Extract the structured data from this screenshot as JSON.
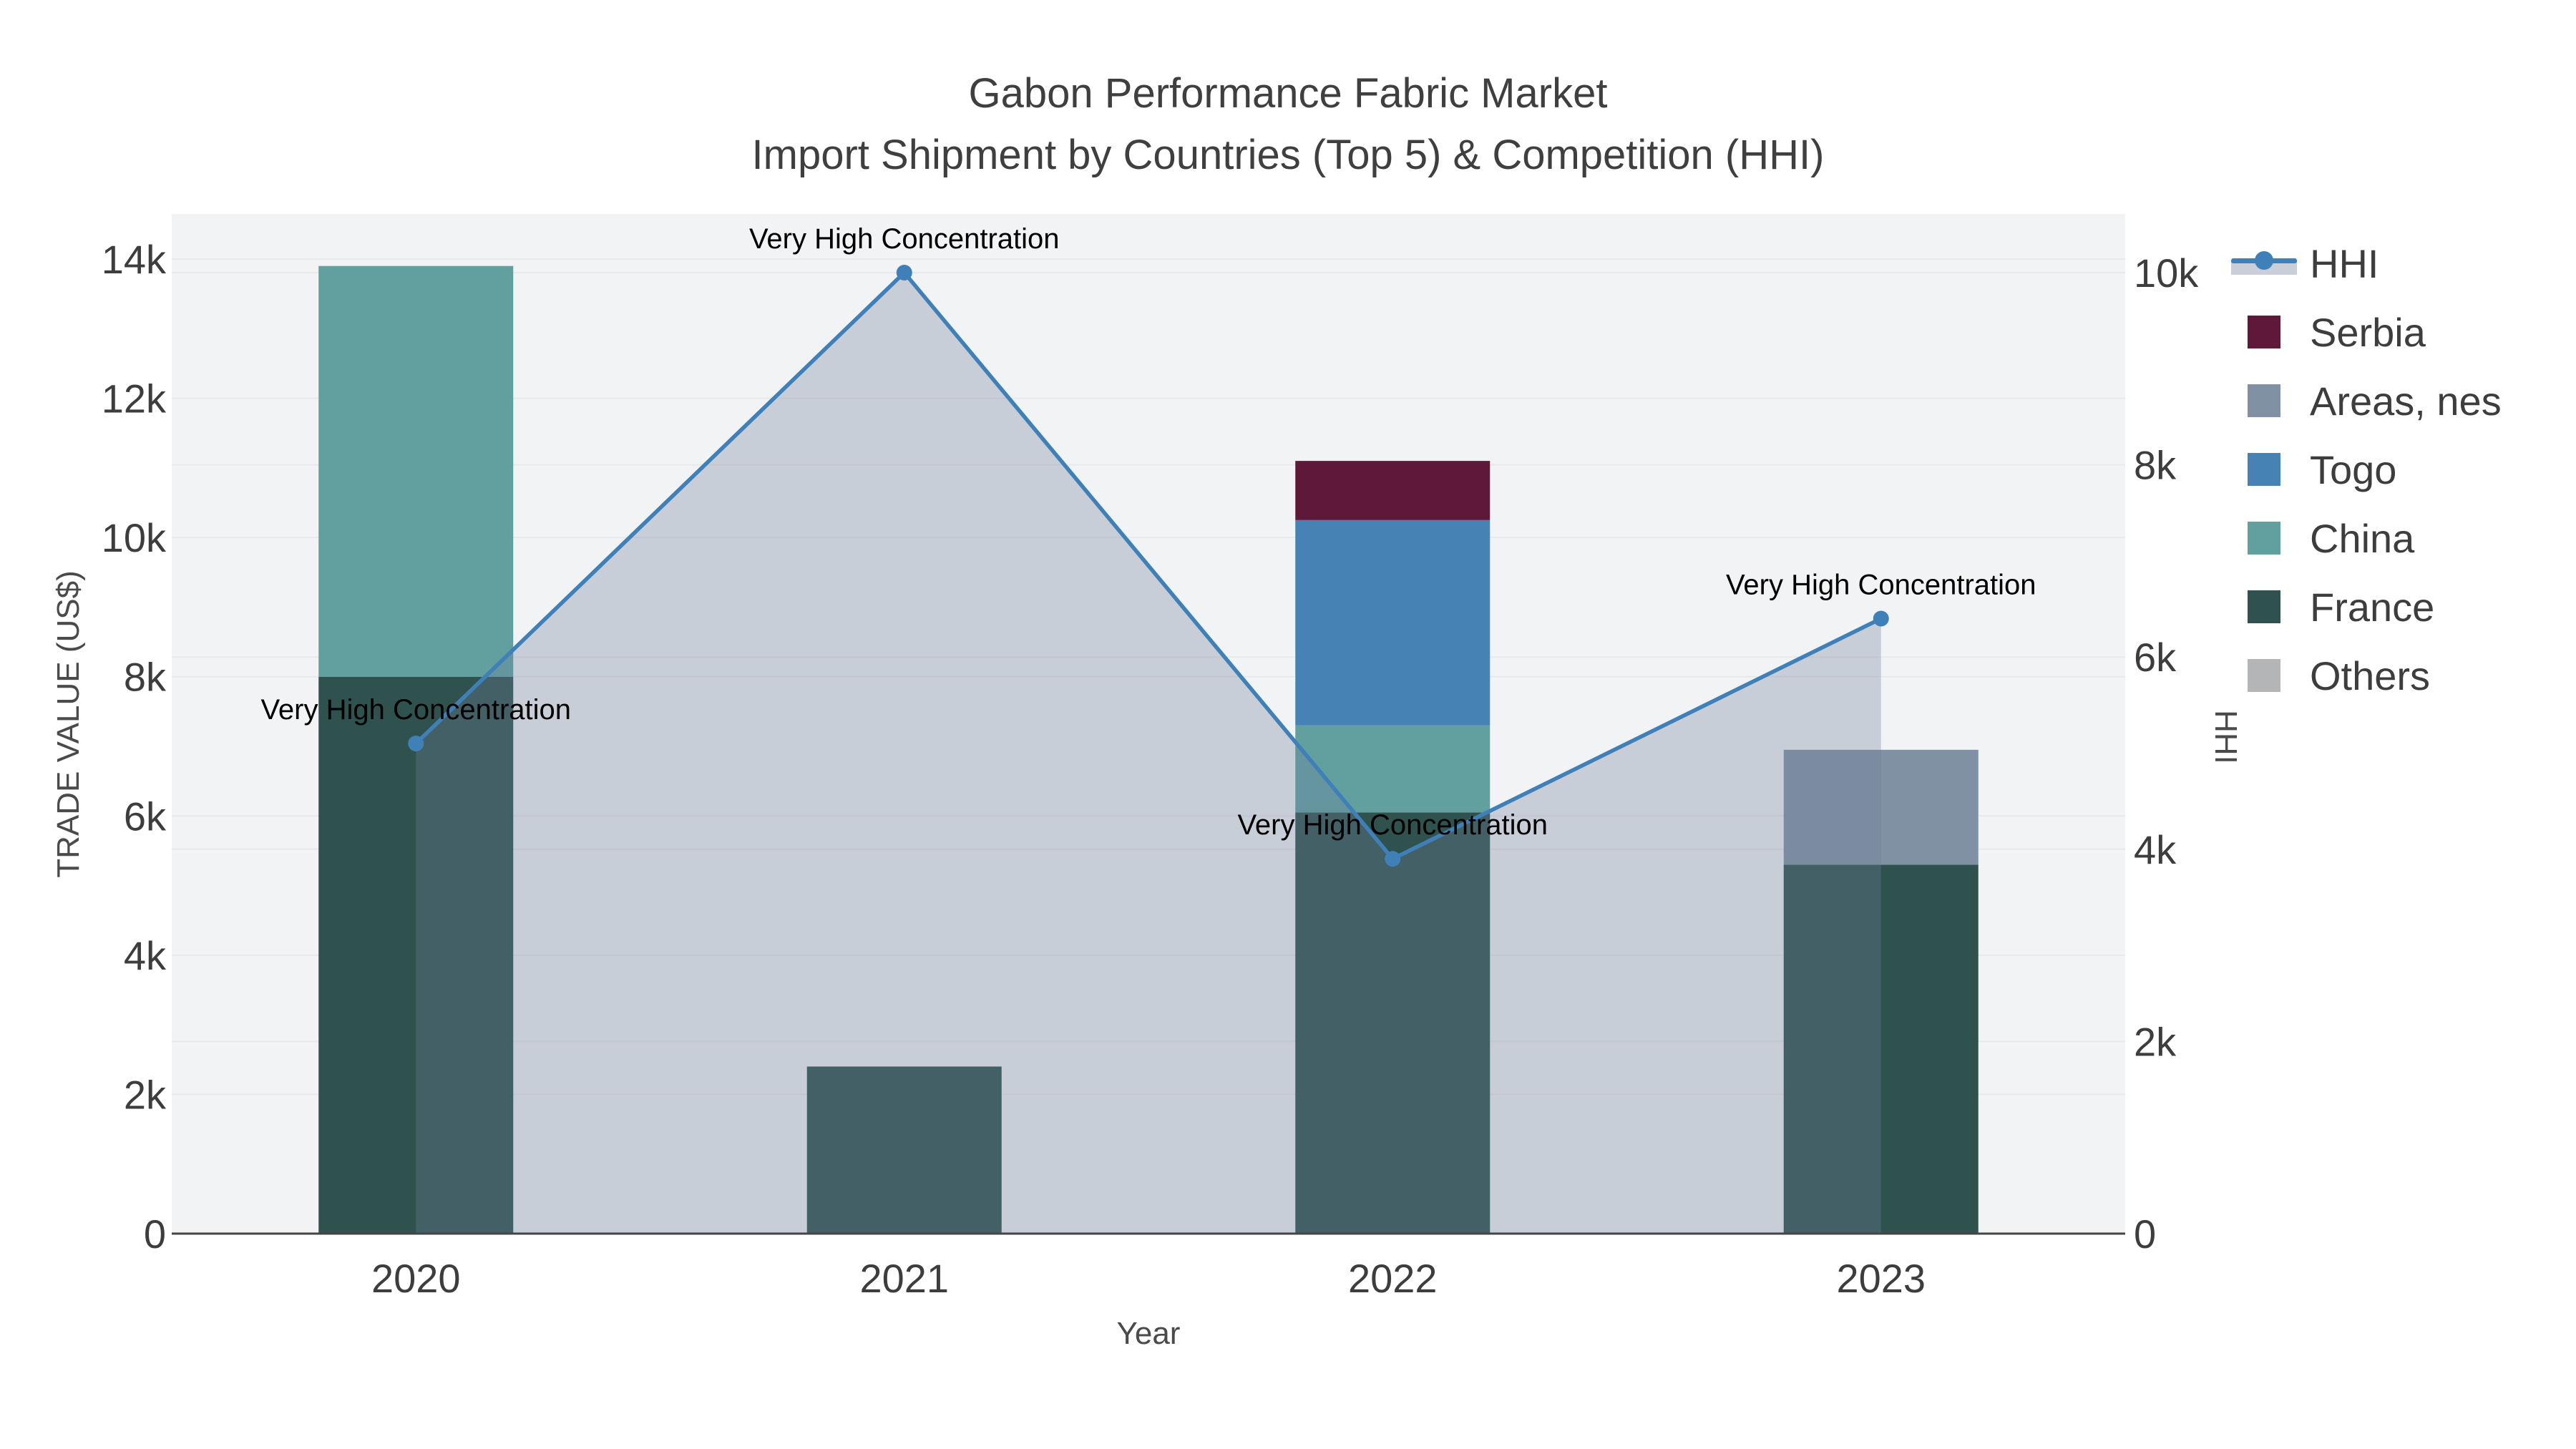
{
  "title": {
    "line1": "Gabon Performance Fabric Market",
    "line2": "Import Shipment by Countries (Top 5) & Competition (HHI)"
  },
  "legend": {
    "items": [
      {
        "label": "HHI",
        "kind": "line",
        "color": "#4080b8"
      },
      {
        "label": "Serbia",
        "kind": "swatch",
        "color": "#5f1838"
      },
      {
        "label": "Areas, nes",
        "kind": "swatch",
        "color": "#8091a3"
      },
      {
        "label": "Togo",
        "kind": "swatch",
        "color": "#4682b4"
      },
      {
        "label": "China",
        "kind": "swatch",
        "color": "#61a09f"
      },
      {
        "label": "France",
        "kind": "swatch",
        "color": "#2f524f"
      },
      {
        "label": "Others",
        "kind": "swatch",
        "color": "#b3b5b7"
      }
    ]
  },
  "chart_data": {
    "type": "bar+line",
    "title": "Gabon Performance Fabric Market",
    "subtitle": "Import Shipment by Countries (Top 5) & Competition (HHI)",
    "categories": [
      "2020",
      "2021",
      "2022",
      "2023"
    ],
    "x_axis": {
      "label": "Year"
    },
    "y_left": {
      "label": "TRADE VALUE (US$)",
      "range": [
        0,
        14000
      ],
      "ticks": [
        {
          "value": 0,
          "label": "0"
        },
        {
          "value": 2000,
          "label": "2k"
        },
        {
          "value": 4000,
          "label": "4k"
        },
        {
          "value": 6000,
          "label": "6k"
        },
        {
          "value": 8000,
          "label": "8k"
        },
        {
          "value": 10000,
          "label": "10k"
        },
        {
          "value": 12000,
          "label": "12k"
        },
        {
          "value": 14000,
          "label": "14k"
        }
      ]
    },
    "y_right": {
      "label": "HHI",
      "range": [
        0,
        10000
      ],
      "ticks": [
        {
          "value": 0,
          "label": "0"
        },
        {
          "value": 2000,
          "label": "2k"
        },
        {
          "value": 4000,
          "label": "4k"
        },
        {
          "value": 6000,
          "label": "6k"
        },
        {
          "value": 8000,
          "label": "8k"
        },
        {
          "value": 10000,
          "label": "10k"
        }
      ]
    },
    "series": [
      {
        "name": "France",
        "color": "#2f524f",
        "values": [
          8000,
          2400,
          6050,
          5300
        ]
      },
      {
        "name": "China",
        "color": "#61a09f",
        "values": [
          5900,
          0,
          1250,
          0
        ]
      },
      {
        "name": "Togo",
        "color": "#4682b4",
        "values": [
          0,
          0,
          2950,
          0
        ]
      },
      {
        "name": "Areas, nes",
        "color": "#8091a3",
        "values": [
          0,
          0,
          0,
          1650
        ]
      },
      {
        "name": "Serbia",
        "color": "#5f1838",
        "values": [
          0,
          0,
          850,
          0
        ]
      },
      {
        "name": "Others",
        "color": "#b3b5b7",
        "values": [
          0,
          0,
          0,
          0
        ]
      }
    ],
    "line_series": {
      "name": "HHI",
      "axis": "right",
      "color": "#4080b8",
      "area_fill": "rgba(113,129,155,0.32)",
      "values": [
        5100,
        10000,
        3900,
        6400
      ],
      "point_annotations": [
        "Very High Concentration",
        "Very High Concentration",
        "Very High Concentration",
        "Very High Concentration"
      ]
    },
    "layout_hints": {
      "plot_bg": "#f2f3f4",
      "grid_color": "#e7e9eb",
      "axis_line_color": "#444444",
      "legend_position": "right",
      "grid": "on"
    }
  }
}
